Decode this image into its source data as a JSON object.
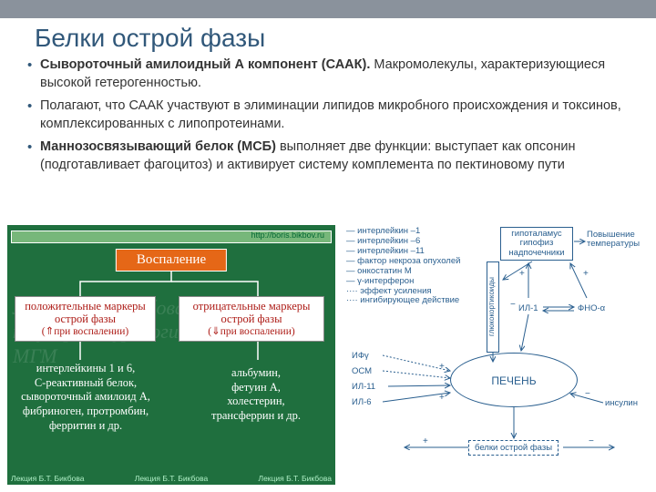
{
  "title": "Белки острой фазы",
  "bullets": [
    "<b>Сывороточный амилоидный А компонент (СААК).</b> Макромолекулы, характеризующиеся высокой гетерогенностью.",
    "Полагают, что СААК участвуют в элиминации липидов микробного происхождения и токсинов, комплексированных с липопротеинами.",
    "<b>Маннозосвязывающий белок (МСБ)</b> выполняет две функции: выступает как опсонин (подготавливает фагоцитоз) и активирует систему комплемента по пектиновому пути"
  ],
  "left": {
    "url": "http://boris.bikbov.ru",
    "header": "Воспаление",
    "posBox": {
      "l1": "положительные маркеры",
      "l2": "острой фазы",
      "l3": "(⇑при воспалении)"
    },
    "negBox": {
      "l1": "отрицательные маркеры",
      "l2": "острой фазы",
      "l3": "(⇓при воспалении)"
    },
    "posText": "интерлейкины 1 и 6,\nС-реактивный белок,\nсывороточный амилоид А,\nфибриноген, протромбин,\nферритин и др.",
    "negText": "альбумин,\nфетуин А,\nхолестерин,\nтрансферрин и др.",
    "credit": "Лекция Б.Т. Бикбова",
    "watermark": "Лекция Б.Т. Бикбова\nкафедра нефрологии\nМГМ"
  },
  "right": {
    "list": [
      "интерлейкин –1",
      "интерлейкин –6",
      "интерлейкин –11",
      "фактор некроза опухолей",
      "онкостатин М",
      "γ-интерферон",
      "эффект усиления",
      "ингибирующее действие"
    ],
    "listPrefix": [
      "—",
      "—",
      "—",
      "—",
      "—",
      "—",
      "····",
      "····"
    ],
    "hgp": "гипоталамус\nгипофиз\nнадпочечники",
    "temp": "Повышение\nтемпературы",
    "il1": "ИЛ-1",
    "fno": "ФНО-α",
    "gluco": "глюкокортикоиды",
    "liver": "ПЕЧЕНЬ",
    "inputs": [
      "ИФγ",
      "ОСМ",
      "ИЛ-11",
      "ИЛ-6"
    ],
    "insulin": "инсулин",
    "bof": "белки острой фазы"
  },
  "colors": {
    "title": "#31587a",
    "green": "#1f6f3e",
    "orange": "#e56717",
    "darkRed": "#ad1c17",
    "blue": "#2a5f8f"
  }
}
